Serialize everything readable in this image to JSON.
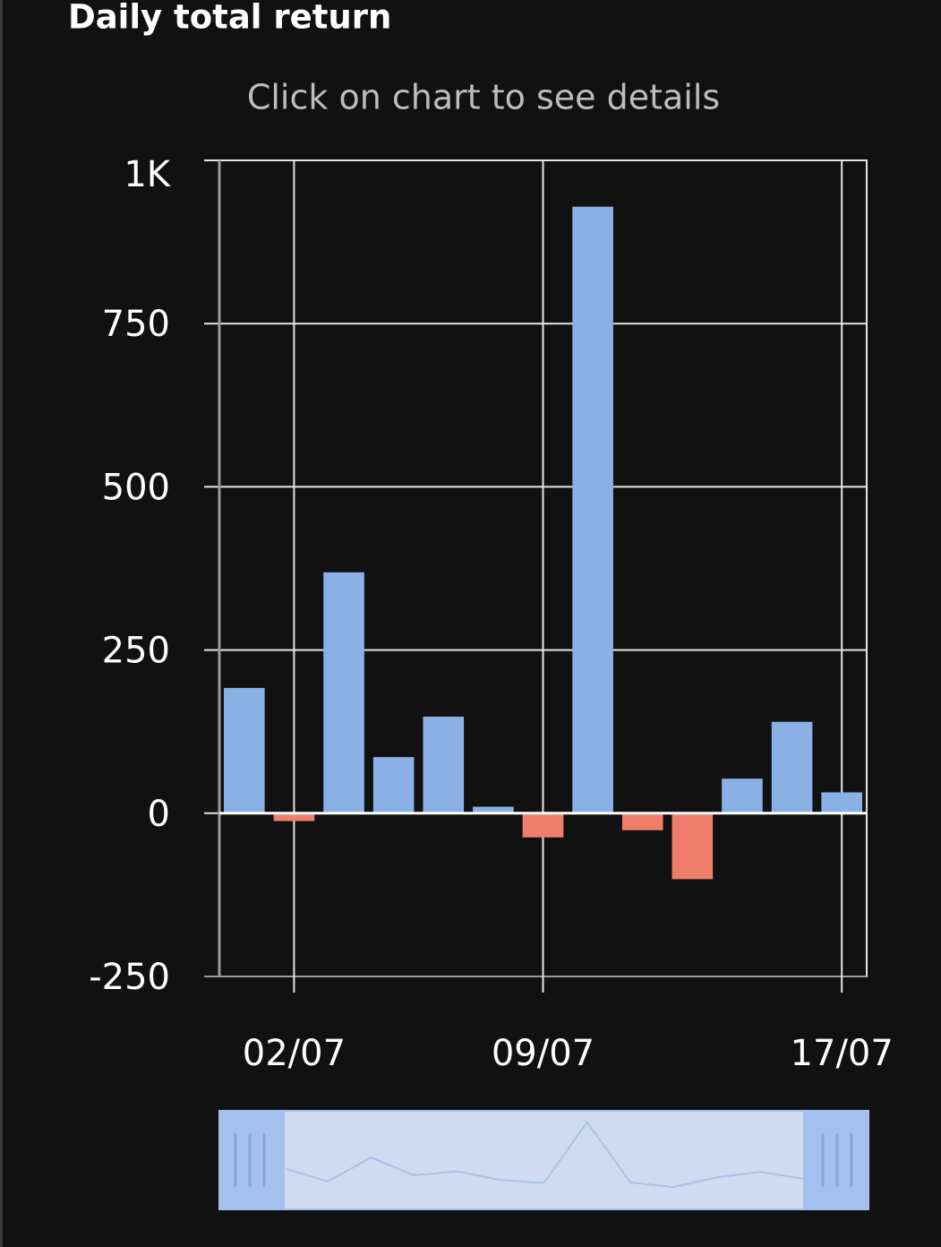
{
  "chart_data": {
    "type": "bar",
    "title": "Daily total return",
    "subtitle": "Click on chart to see details",
    "categories": [
      null,
      "02/07",
      null,
      null,
      null,
      null,
      "09/07",
      null,
      null,
      null,
      null,
      null,
      "17/07"
    ],
    "values": [
      192,
      -12,
      369,
      86,
      148,
      10,
      -37,
      929,
      -26,
      -101,
      53,
      140,
      32
    ],
    "positive_color": "#8ab0e6",
    "negative_color": "#ef7e6a",
    "ylim": [
      -250,
      1000
    ],
    "yticks": [
      -250,
      0,
      250,
      500,
      750,
      {
        "value": 1000,
        "label": "1K"
      }
    ],
    "grid": true
  }
}
